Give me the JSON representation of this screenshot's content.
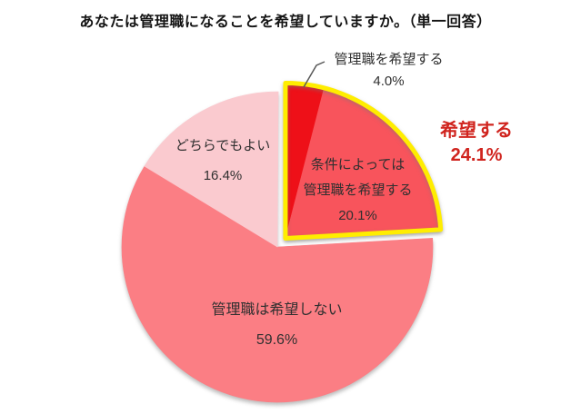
{
  "page": {
    "background_color": "#FFFFFF"
  },
  "chart_data": {
    "type": "pie",
    "title": "あなたは管理職になることを希望していますか。（単一回答）",
    "direction": "clockwise",
    "start_angle_deg": 0,
    "legend_position": "none",
    "slices": [
      {
        "label": "管理職を希望する",
        "label_lines": [
          "管理職を希望する"
        ],
        "value": 4.0,
        "pct": "4.0%",
        "color": "#EE1018",
        "highlighted": true,
        "label_placement": "outside-callout"
      },
      {
        "label": "条件によっては管理職を希望する",
        "label_lines": [
          "条件によっては",
          "管理職を希望する"
        ],
        "value": 20.1,
        "pct": "20.1%",
        "color": "#F8545C",
        "highlighted": true,
        "label_placement": "inside"
      },
      {
        "label": "管理職は希望しない",
        "label_lines": [
          "管理職は希望しない"
        ],
        "value": 59.6,
        "pct": "59.6%",
        "color": "#FB7E84",
        "highlighted": false,
        "label_placement": "inside"
      },
      {
        "label": "どちらでもよい",
        "label_lines": [
          "どちらでもよい"
        ],
        "value": 16.4,
        "pct": "16.4%",
        "color": "#FACACF",
        "highlighted": false,
        "label_placement": "inside"
      }
    ],
    "highlight_group": {
      "label": "希望する",
      "value": 24.1,
      "pct": "24.1%",
      "outline_color": "#FFED00",
      "text_color": "#D0241E"
    },
    "label_color": "#303030",
    "leader_line_color": "#595959",
    "title_color": "#141414"
  }
}
